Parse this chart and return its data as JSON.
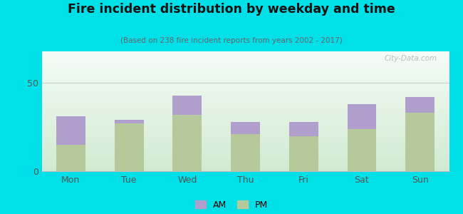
{
  "categories": [
    "Mon",
    "Tue",
    "Wed",
    "Thu",
    "Fri",
    "Sat",
    "Sun"
  ],
  "am_values": [
    16,
    2,
    11,
    7,
    8,
    14,
    9
  ],
  "pm_values": [
    15,
    27,
    32,
    21,
    20,
    24,
    33
  ],
  "am_color": "#b09fcc",
  "pm_color": "#b5c99a",
  "title": "Fire incident distribution by weekday and time",
  "subtitle": "(Based on 238 fire incident reports from years 2002 - 2017)",
  "ylim": [
    0,
    68
  ],
  "yticks": [
    0,
    50
  ],
  "outer_bg": "#00e0e8",
  "watermark": "City-Data.com",
  "bar_width": 0.5,
  "legend_am": "AM",
  "legend_pm": "PM"
}
